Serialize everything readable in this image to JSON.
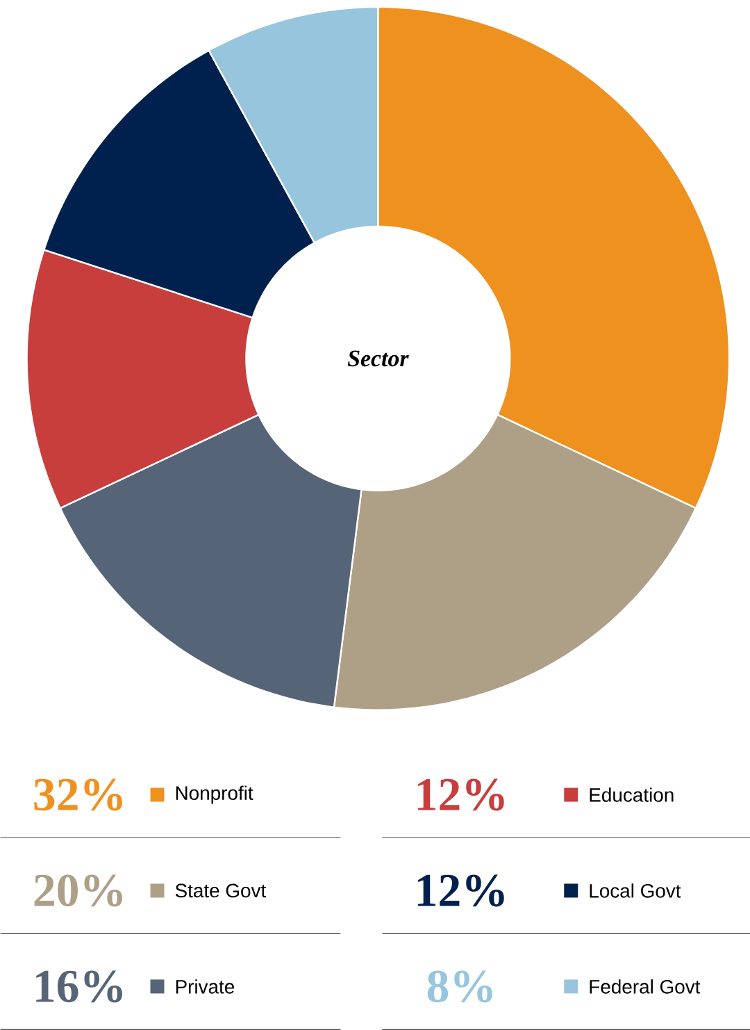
{
  "chart_data": {
    "type": "donut",
    "title": "Sector",
    "categories": [
      "Nonprofit",
      "State Govt",
      "Private",
      "Education",
      "Local Govt",
      "Federal Govt"
    ],
    "values": [
      32,
      20,
      16,
      12,
      12,
      8
    ],
    "value_labels": [
      "32%",
      "20%",
      "16%",
      "12%",
      "12%",
      "8%"
    ],
    "colors": [
      "#ee911f",
      "#ae9f87",
      "#566477",
      "#c73e3d",
      "#00214d",
      "#98c5de"
    ],
    "legend": "bottom"
  }
}
